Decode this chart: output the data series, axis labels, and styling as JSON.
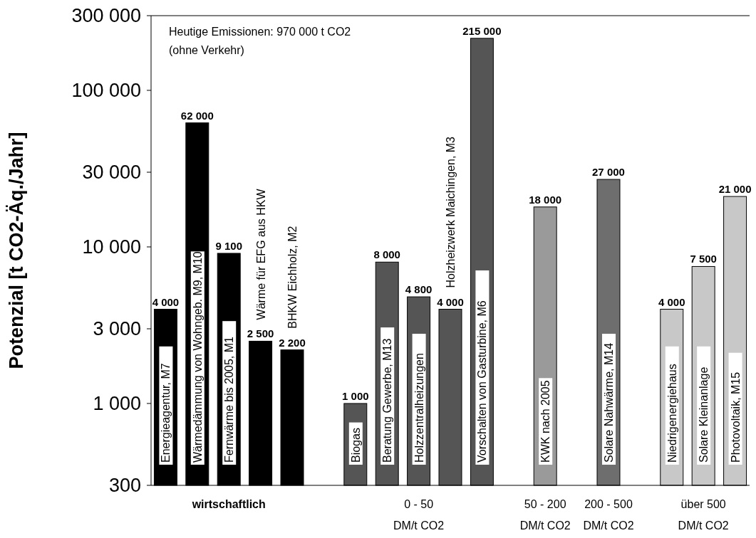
{
  "chart_data": {
    "type": "bar",
    "log": true,
    "ylabel": "Potenzial [t CO2-Äq./Jahr]",
    "categories": [
      "Energieagentur, M7",
      "Wärmedämmung von Wohngeb. M9, M10",
      "Fernwärme bis 2005, M1",
      "Wärme für EFG aus HKW",
      "BHKW Eichholz, M2",
      null,
      "Biogas",
      "Beratung Gewerbe, M13",
      "Holzzentralheizungen",
      "Holzheizwerk Maichingen, M3",
      "Vorschalten von Gasturbine, M6",
      null,
      "KWK nach 2005",
      null,
      "Solare Nahwärme, M14",
      null,
      "Niedrigenergiehaus",
      "Solare Kleinanlage",
      "Photovoltaik, M15"
    ],
    "values": [
      4000,
      62000,
      9100,
      2500,
      2200,
      null,
      1000,
      8000,
      4800,
      4000,
      215000,
      null,
      18000,
      null,
      27000,
      null,
      4000,
      7500,
      21000
    ],
    "value_labels": [
      "4 000",
      "62 000",
      "9 100",
      "2 500",
      "2 200",
      null,
      "1 000",
      "8 000",
      "4 800",
      "4 000",
      "215 000",
      null,
      "18 000",
      null,
      "27 000",
      null,
      "4 000",
      "7 500",
      "21 000"
    ],
    "colors": [
      "#000000",
      "#000000",
      "#000000",
      "#000000",
      "#000000",
      null,
      "#555555",
      "#555555",
      "#555555",
      "#555555",
      "#555555",
      null,
      "#9a9a9a",
      null,
      "#6e6e6e",
      null,
      "#c8c8c8",
      "#c8c8c8",
      "#c8c8c8"
    ],
    "ylim": [
      300,
      300000
    ],
    "yticks": [
      {
        "value": 300,
        "label": "300"
      },
      {
        "value": 1000,
        "label": "1 000"
      },
      {
        "value": 3000,
        "label": "3 000"
      },
      {
        "value": 10000,
        "label": "10 000"
      },
      {
        "value": 30000,
        "label": "30 000"
      },
      {
        "value": 100000,
        "label": "100 000"
      },
      {
        "value": 300000,
        "label": "300 000"
      }
    ],
    "grid": false,
    "annotations": [
      "Heutige Emissionen:  970 000 t CO2",
      "(ohne Verkehr)",
      "wirtschaftlich",
      "0 - 50\nDM/t CO2",
      "50 - 200\nDM/t CO2",
      "200 - 500\nDM/t CO2",
      "über  500\nDM/t CO2"
    ]
  }
}
